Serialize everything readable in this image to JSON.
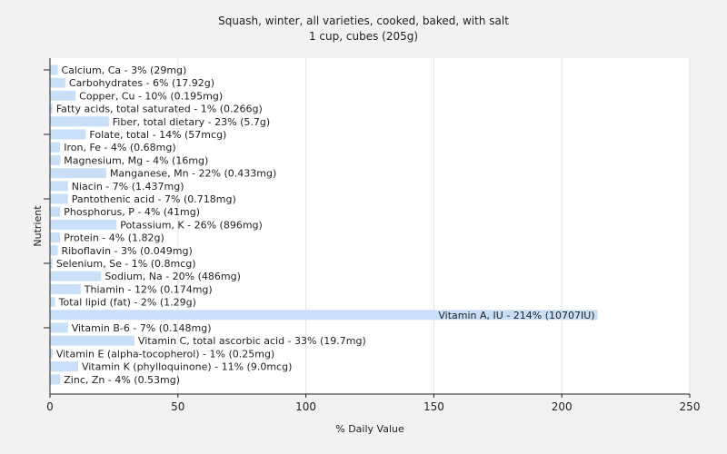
{
  "chart_data": {
    "type": "bar",
    "orientation": "horizontal",
    "title": "Squash, winter, all varieties, cooked, baked, with salt",
    "subtitle": "1 cup, cubes (205g)",
    "xlabel": "% Daily Value",
    "ylabel": "Nutrient",
    "xlim": [
      0,
      250
    ],
    "xticks": [
      "0",
      "50",
      "100",
      "150",
      "200",
      "250"
    ],
    "grid": true,
    "bar_color": "#c9dff7",
    "categories": [
      "Calcium, Ca",
      "Carbohydrates",
      "Copper, Cu",
      "Fatty acids, total saturated",
      "Fiber, total dietary",
      "Folate, total",
      "Iron, Fe",
      "Magnesium, Mg",
      "Manganese, Mn",
      "Niacin",
      "Pantothenic acid",
      "Phosphorus, P",
      "Potassium, K",
      "Protein",
      "Riboflavin",
      "Selenium, Se",
      "Sodium, Na",
      "Thiamin",
      "Total lipid (fat)",
      "Vitamin A, IU",
      "Vitamin B-6",
      "Vitamin C, total ascorbic acid",
      "Vitamin E (alpha-tocopherol)",
      "Vitamin K (phylloquinone)",
      "Zinc, Zn"
    ],
    "values": [
      3,
      6,
      10,
      1,
      23,
      14,
      4,
      4,
      22,
      7,
      7,
      4,
      26,
      4,
      3,
      1,
      20,
      12,
      2,
      214,
      7,
      33,
      1,
      11,
      4
    ],
    "labels": [
      "Calcium, Ca - 3% (29mg)",
      "Carbohydrates - 6% (17.92g)",
      "Copper, Cu - 10% (0.195mg)",
      "Fatty acids, total saturated - 1% (0.266g)",
      "Fiber, total dietary - 23% (5.7g)",
      "Folate, total - 14% (57mcg)",
      "Iron, Fe - 4% (0.68mg)",
      "Magnesium, Mg - 4% (16mg)",
      "Manganese, Mn - 22% (0.433mg)",
      "Niacin - 7% (1.437mg)",
      "Pantothenic acid - 7% (0.718mg)",
      "Phosphorus, P - 4% (41mg)",
      "Potassium, K - 26% (896mg)",
      "Protein - 4% (1.82g)",
      "Riboflavin - 3% (0.049mg)",
      "Selenium, Se - 1% (0.8mcg)",
      "Sodium, Na - 20% (486mg)",
      "Thiamin - 12% (0.174mg)",
      "Total lipid (fat) - 2% (1.29g)",
      "Vitamin A, IU - 214% (10707IU)",
      "Vitamin B-6 - 7% (0.148mg)",
      "Vitamin C, total ascorbic acid - 33% (19.7mg)",
      "Vitamin E (alpha-tocopherol) - 1% (0.25mg)",
      "Vitamin K (phylloquinone) - 11% (9.0mcg)",
      "Zinc, Zn - 4% (0.53mg)"
    ]
  }
}
